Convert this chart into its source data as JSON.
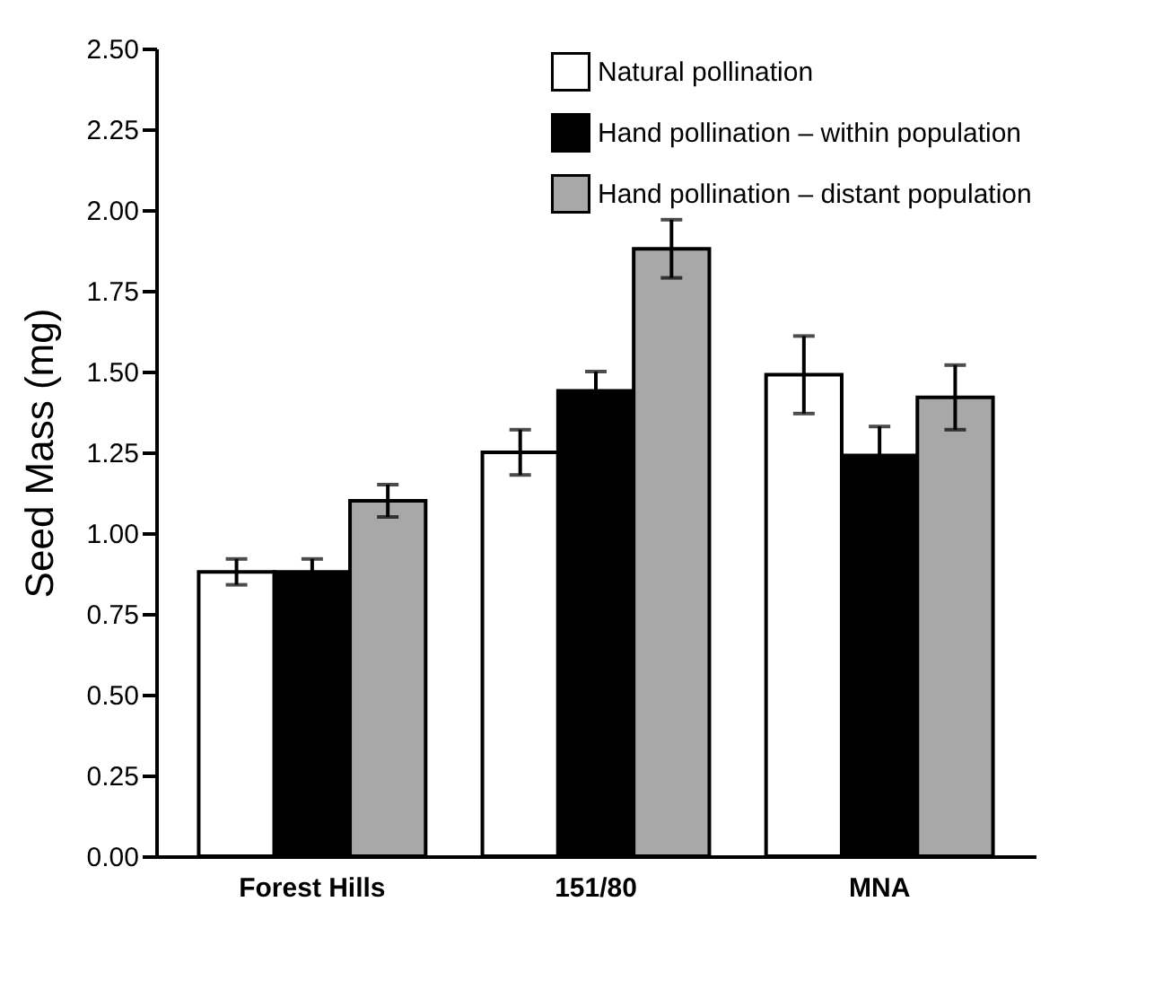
{
  "chart_data": {
    "type": "bar",
    "ylabel": "Seed Mass (mg)",
    "categories": [
      "Forest Hills",
      "151/80",
      "MNA"
    ],
    "series": [
      {
        "name": "Natural pollination",
        "color": "#ffffff",
        "values": [
          0.88,
          1.25,
          1.49
        ],
        "errors": [
          0.04,
          0.07,
          0.12
        ]
      },
      {
        "name": "Hand pollination – within population",
        "color": "#000000",
        "values": [
          0.88,
          1.44,
          1.24
        ],
        "errors": [
          0.04,
          0.06,
          0.09
        ]
      },
      {
        "name": "Hand pollination – distant population",
        "color": "#a8a8a8",
        "values": [
          1.1,
          1.88,
          1.42
        ],
        "errors": [
          0.05,
          0.09,
          0.1
        ]
      }
    ],
    "ylim": [
      0,
      2.5
    ],
    "yticks": [
      {
        "value": 0,
        "label": "0.00"
      },
      {
        "value": 0.25,
        "label": "0.25"
      },
      {
        "value": 0.5,
        "label": "0.50"
      },
      {
        "value": 0.75,
        "label": "0.75"
      },
      {
        "value": 1,
        "label": "1.00"
      },
      {
        "value": 1.25,
        "label": "1.25"
      },
      {
        "value": 1.5,
        "label": "1.50"
      },
      {
        "value": 1.75,
        "label": "1.75"
      },
      {
        "value": 2,
        "label": "2.00"
      },
      {
        "value": 2.25,
        "label": "2.25"
      },
      {
        "value": 2.5,
        "label": "2.50"
      }
    ],
    "legend": "top right",
    "grid": false
  }
}
